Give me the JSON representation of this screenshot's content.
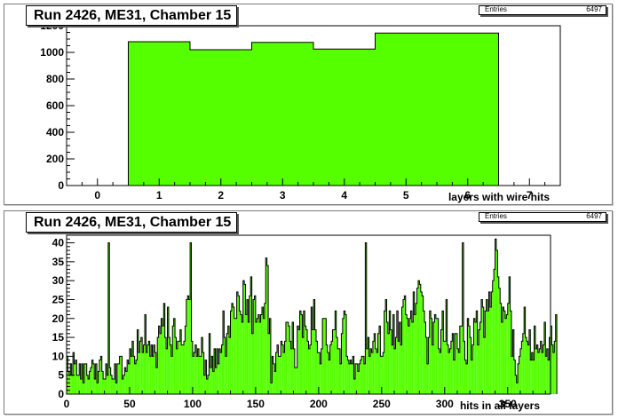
{
  "colors": {
    "fill": "#55ff00",
    "line": "#000000",
    "frame": "#ffffff"
  },
  "chart_data": [
    {
      "type": "bar",
      "title": "Run 2426, ME31, Chamber 15",
      "stats": {
        "label": "Entries",
        "value": "6497"
      },
      "xlabel": "layers with wire hits",
      "ylabel": "",
      "xlim": [
        -0.5,
        7.5
      ],
      "ylim": [
        0,
        1200
      ],
      "xticks": [
        "0",
        "1",
        "2",
        "3",
        "4",
        "5",
        "6",
        "7"
      ],
      "yticks": [
        "0",
        "200",
        "400",
        "600",
        "800",
        "1000",
        "1200"
      ],
      "bin_edges": [
        0.5,
        1.5,
        2.5,
        3.5,
        4.5,
        5.5,
        6.5
      ],
      "values": [
        1080,
        1020,
        1075,
        1025,
        1145,
        1145
      ]
    },
    {
      "type": "bar",
      "title": "Run 2426, ME31, Chamber 15",
      "stats": {
        "label": "Entries",
        "value": "6497"
      },
      "xlabel": "hits in all layers",
      "ylabel": "",
      "xlim": [
        0,
        384
      ],
      "ylim": [
        0,
        42
      ],
      "xticks": [
        "0",
        "50",
        "100",
        "150",
        "200",
        "250",
        "300",
        "350"
      ],
      "yticks": [
        "0",
        "5",
        "10",
        "15",
        "20",
        "25",
        "30",
        "35",
        "40"
      ],
      "bin_width": 1,
      "values": [
        10,
        6,
        5,
        8,
        5,
        11,
        8,
        9,
        5,
        5,
        8,
        4,
        8,
        3,
        8,
        8,
        5,
        4,
        6,
        7,
        9,
        8,
        4,
        8,
        3,
        6,
        9,
        10,
        6,
        4,
        4,
        8,
        5,
        40,
        7,
        5,
        4,
        4,
        8,
        3,
        8,
        8,
        10,
        10,
        4,
        5,
        7,
        6,
        9,
        8,
        12,
        10,
        14,
        10,
        8,
        9,
        17,
        11,
        14,
        15,
        11,
        13,
        21,
        11,
        13,
        14,
        10,
        13,
        10,
        13,
        11,
        7,
        15,
        18,
        16,
        20,
        18,
        24,
        15,
        12,
        23,
        15,
        13,
        10,
        18,
        20,
        15,
        12,
        14,
        14,
        17,
        13,
        13,
        14,
        18,
        25,
        26,
        25,
        40,
        14,
        10,
        11,
        13,
        10,
        12,
        10,
        10,
        15,
        11,
        5,
        9,
        4,
        5,
        16,
        7,
        10,
        6,
        12,
        7,
        12,
        8,
        12,
        11,
        13,
        22,
        15,
        10,
        16,
        18,
        15,
        22,
        24,
        23,
        20,
        20,
        27,
        26,
        22,
        21,
        19,
        30,
        29,
        21,
        25,
        19,
        26,
        31,
        16,
        25,
        26,
        19,
        20,
        21,
        19,
        21,
        23,
        20,
        24,
        36,
        34,
        16,
        20,
        3,
        10,
        8,
        6,
        11,
        13,
        10,
        10,
        14,
        13,
        11,
        14,
        19,
        19,
        18,
        14,
        12,
        19,
        12,
        7,
        7,
        18,
        17,
        22,
        21,
        15,
        22,
        18,
        17,
        14,
        12,
        13,
        23,
        17,
        25,
        17,
        14,
        11,
        11,
        8,
        12,
        20,
        20,
        20,
        13,
        11,
        9,
        13,
        14,
        17,
        17,
        22,
        15,
        12,
        12,
        8,
        16,
        20,
        22,
        21,
        10,
        9,
        8,
        9,
        8,
        10,
        4,
        8,
        8,
        6,
        8,
        9,
        10,
        10,
        8,
        40,
        12,
        15,
        10,
        12,
        11,
        14,
        16,
        12,
        11,
        16,
        18,
        10,
        10,
        11,
        22,
        25,
        19,
        16,
        22,
        17,
        13,
        21,
        12,
        15,
        22,
        14,
        19,
        13,
        23,
        25,
        26,
        21,
        20,
        18,
        20,
        22,
        19,
        27,
        21,
        24,
        28,
        30,
        29,
        27,
        26,
        22,
        19,
        15,
        8,
        15,
        22,
        20,
        13,
        19,
        21,
        20,
        20,
        12,
        11,
        17,
        22,
        14,
        14,
        25,
        13,
        11,
        12,
        14,
        16,
        9,
        16,
        16,
        12,
        11,
        18,
        18,
        40,
        14,
        9,
        8,
        20,
        18,
        15,
        9,
        13,
        20,
        19,
        22,
        13,
        17,
        19,
        25,
        23,
        15,
        22,
        25,
        22,
        27,
        23,
        27,
        30,
        33,
        41,
        38,
        31,
        28,
        24,
        19,
        23,
        22,
        20,
        21,
        24,
        31,
        22,
        10,
        17,
        9,
        5,
        3,
        8,
        10,
        12,
        14,
        16,
        23,
        15,
        14,
        13,
        17,
        9,
        11,
        9,
        18,
        12,
        13,
        11,
        12,
        14,
        11,
        13,
        19,
        10,
        12,
        9,
        15,
        18,
        13,
        11,
        14,
        21
      ]
    }
  ]
}
